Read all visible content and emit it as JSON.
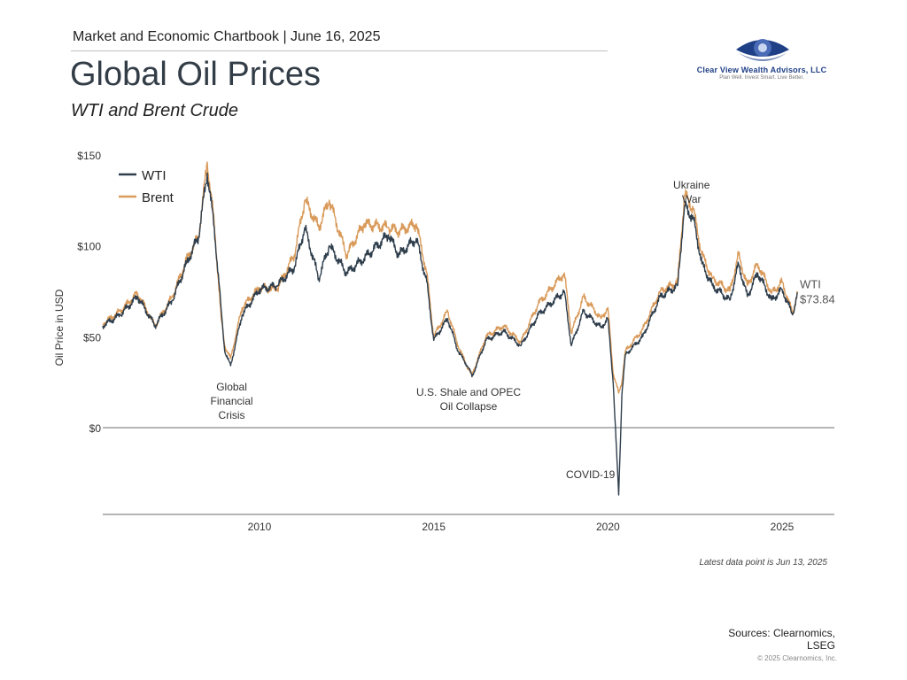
{
  "header": {
    "dateline": "Market and Economic Chartbook | June 16, 2025",
    "title": "Global Oil Prices",
    "subtitle": "WTI and Brent Crude"
  },
  "logo": {
    "name": "Clear View Wealth Advisors, LLC",
    "tagline": "Plan Well. Invest Smart. Live Better."
  },
  "chart_data": {
    "type": "line",
    "title": "Global Oil Prices",
    "subtitle": "WTI and Brent Crude",
    "xlabel": "",
    "ylabel": "Oil Price in USD",
    "xlim": [
      2005.5,
      2026.5
    ],
    "ylim": [
      -48,
      150
    ],
    "x_ticks": [
      {
        "value": 2010,
        "label": "2010"
      },
      {
        "value": 2015,
        "label": "2015"
      },
      {
        "value": 2020,
        "label": "2020"
      },
      {
        "value": 2025,
        "label": "2025"
      }
    ],
    "y_ticks": [
      {
        "value": 0,
        "label": "$0"
      },
      {
        "value": 50,
        "label": "$50"
      },
      {
        "value": 100,
        "label": "$100"
      },
      {
        "value": 150,
        "label": "$150"
      }
    ],
    "grid": false,
    "legend_position": "top-left",
    "series": [
      {
        "name": "WTI",
        "color": "#2f3e4c",
        "points": [
          [
            2005.5,
            56
          ],
          [
            2006.0,
            62
          ],
          [
            2006.5,
            72
          ],
          [
            2007.0,
            56
          ],
          [
            2007.5,
            70
          ],
          [
            2007.9,
            90
          ],
          [
            2008.25,
            105
          ],
          [
            2008.5,
            140
          ],
          [
            2008.7,
            110
          ],
          [
            2008.9,
            65
          ],
          [
            2009.0,
            42
          ],
          [
            2009.17,
            34
          ],
          [
            2009.5,
            62
          ],
          [
            2010.0,
            76
          ],
          [
            2010.5,
            78
          ],
          [
            2011.0,
            88
          ],
          [
            2011.3,
            110
          ],
          [
            2011.7,
            82
          ],
          [
            2012.0,
            100
          ],
          [
            2012.5,
            85
          ],
          [
            2013.0,
            93
          ],
          [
            2013.7,
            106
          ],
          [
            2014.0,
            95
          ],
          [
            2014.5,
            104
          ],
          [
            2014.8,
            80
          ],
          [
            2015.0,
            48
          ],
          [
            2015.4,
            60
          ],
          [
            2015.7,
            42
          ],
          [
            2016.0,
            33
          ],
          [
            2016.1,
            28
          ],
          [
            2016.5,
            48
          ],
          [
            2017.0,
            53
          ],
          [
            2017.5,
            45
          ],
          [
            2018.0,
            62
          ],
          [
            2018.75,
            75
          ],
          [
            2018.95,
            45
          ],
          [
            2019.3,
            64
          ],
          [
            2019.8,
            55
          ],
          [
            2020.0,
            60
          ],
          [
            2020.15,
            25
          ],
          [
            2020.31,
            -37
          ],
          [
            2020.4,
            18
          ],
          [
            2020.5,
            40
          ],
          [
            2021.0,
            50
          ],
          [
            2021.5,
            72
          ],
          [
            2022.0,
            78
          ],
          [
            2022.2,
            122
          ],
          [
            2022.45,
            115
          ],
          [
            2022.7,
            90
          ],
          [
            2023.0,
            78
          ],
          [
            2023.5,
            70
          ],
          [
            2023.75,
            90
          ],
          [
            2024.0,
            72
          ],
          [
            2024.3,
            85
          ],
          [
            2024.7,
            70
          ],
          [
            2025.0,
            76
          ],
          [
            2025.3,
            62
          ],
          [
            2025.45,
            73.84
          ]
        ]
      },
      {
        "name": "Brent",
        "color": "#d99a5a",
        "points": [
          [
            2005.5,
            57
          ],
          [
            2006.0,
            64
          ],
          [
            2006.5,
            74
          ],
          [
            2007.0,
            56
          ],
          [
            2007.5,
            72
          ],
          [
            2007.9,
            92
          ],
          [
            2008.25,
            105
          ],
          [
            2008.5,
            146
          ],
          [
            2008.7,
            112
          ],
          [
            2008.9,
            60
          ],
          [
            2009.0,
            45
          ],
          [
            2009.17,
            38
          ],
          [
            2009.5,
            66
          ],
          [
            2010.0,
            77
          ],
          [
            2010.5,
            76
          ],
          [
            2011.0,
            95
          ],
          [
            2011.3,
            125
          ],
          [
            2011.7,
            110
          ],
          [
            2012.0,
            125
          ],
          [
            2012.5,
            95
          ],
          [
            2013.0,
            112
          ],
          [
            2013.7,
            110
          ],
          [
            2014.0,
            108
          ],
          [
            2014.5,
            112
          ],
          [
            2014.8,
            85
          ],
          [
            2015.0,
            50
          ],
          [
            2015.4,
            64
          ],
          [
            2015.7,
            45
          ],
          [
            2016.0,
            32
          ],
          [
            2016.1,
            29
          ],
          [
            2016.5,
            50
          ],
          [
            2017.0,
            56
          ],
          [
            2017.5,
            47
          ],
          [
            2018.0,
            68
          ],
          [
            2018.75,
            85
          ],
          [
            2018.95,
            52
          ],
          [
            2019.3,
            72
          ],
          [
            2019.8,
            60
          ],
          [
            2020.0,
            66
          ],
          [
            2020.15,
            30
          ],
          [
            2020.31,
            19
          ],
          [
            2020.4,
            25
          ],
          [
            2020.5,
            42
          ],
          [
            2021.0,
            54
          ],
          [
            2021.5,
            75
          ],
          [
            2022.0,
            80
          ],
          [
            2022.2,
            128
          ],
          [
            2022.45,
            120
          ],
          [
            2022.7,
            95
          ],
          [
            2023.0,
            82
          ],
          [
            2023.5,
            75
          ],
          [
            2023.75,
            95
          ],
          [
            2024.0,
            78
          ],
          [
            2024.3,
            90
          ],
          [
            2024.7,
            74
          ],
          [
            2025.0,
            80
          ],
          [
            2025.3,
            63
          ],
          [
            2025.45,
            74.2
          ]
        ]
      }
    ],
    "annotations": [
      {
        "text": "Global Financial Crisis",
        "x": 2009.2,
        "lines": [
          "Global",
          "Financial",
          "Crisis"
        ]
      },
      {
        "text": "U.S. Shale and OPEC Oil Collapse",
        "x": 2016.0,
        "lines": [
          "U.S. Shale and OPEC",
          "Oil Collapse"
        ]
      },
      {
        "text": "COVID-19",
        "x": 2019.5,
        "lines": [
          "COVID-19"
        ]
      },
      {
        "text": "Ukraine War",
        "x": 2022.4,
        "lines": [
          "Ukraine",
          "War"
        ]
      }
    ],
    "end_label": {
      "series": "WTI",
      "name": "WTI",
      "value_text": "$73.84"
    }
  },
  "footer": {
    "latest_note": "Latest data point is Jun 13, 2025",
    "sources_line1": "Sources: Clearnomics,",
    "sources_line2": "LSEG",
    "copyright": "© 2025 Clearnomics, Inc."
  }
}
